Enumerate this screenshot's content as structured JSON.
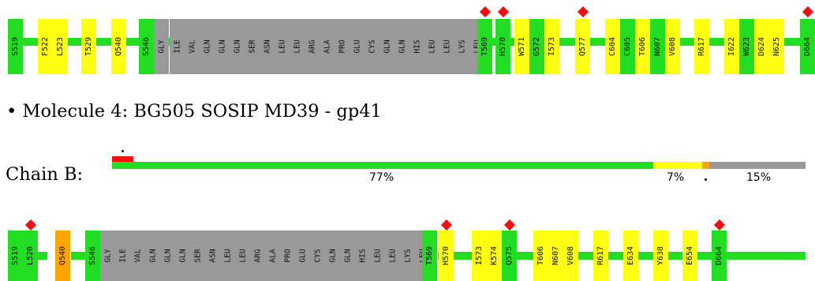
{
  "colors": {
    "green": "#22dd22",
    "yellow": "#ffff11",
    "orange": "#ffa500",
    "gray": "#999999",
    "red": "#ee1111"
  },
  "molecule_title": "• Molecule 4: BG505 SOSIP MD39 - gp41",
  "chain": {
    "label": "Chain B:",
    "quality_segments": [
      {
        "color": "green",
        "percent_label": "77%"
      },
      {
        "color": "yellow",
        "percent_label": "7%"
      },
      {
        "color": "orange",
        "percent_label": ""
      },
      {
        "color": "gray",
        "percent_label": "15%"
      }
    ]
  },
  "track_top": {
    "residues": [
      {
        "label": "S519",
        "color": "green"
      },
      {
        "label": "F522",
        "color": "yellow"
      },
      {
        "label": "L523",
        "color": "yellow"
      },
      {
        "label": "T529",
        "color": "yellow"
      },
      {
        "label": "Q540",
        "color": "yellow"
      },
      {
        "label": "S546",
        "color": "green"
      },
      {
        "label": "GLY",
        "color": "gray"
      },
      {
        "label": "ILE",
        "color": "gray"
      },
      {
        "label": "VAL",
        "color": "gray"
      },
      {
        "label": "GLN",
        "color": "gray"
      },
      {
        "label": "GLN",
        "color": "gray"
      },
      {
        "label": "GLN",
        "color": "gray"
      },
      {
        "label": "SER",
        "color": "gray"
      },
      {
        "label": "ASN",
        "color": "gray"
      },
      {
        "label": "LEU",
        "color": "gray"
      },
      {
        "label": "LEU",
        "color": "gray"
      },
      {
        "label": "ARG",
        "color": "gray"
      },
      {
        "label": "ALA",
        "color": "gray"
      },
      {
        "label": "PRO",
        "color": "gray"
      },
      {
        "label": "GLU",
        "color": "gray"
      },
      {
        "label": "CYS",
        "color": "gray"
      },
      {
        "label": "GLN",
        "color": "gray"
      },
      {
        "label": "GLN",
        "color": "gray"
      },
      {
        "label": "HIS",
        "color": "gray"
      },
      {
        "label": "LEU",
        "color": "gray"
      },
      {
        "label": "LEU",
        "color": "gray"
      },
      {
        "label": "LYS",
        "color": "gray"
      },
      {
        "label": "LEU",
        "color": "gray"
      },
      {
        "label": "T569",
        "color": "green",
        "marker": "diamond"
      },
      {
        "label": "H570",
        "color": "green",
        "marker": "diamond"
      },
      {
        "label": "W571",
        "color": "yellow"
      },
      {
        "label": "G572",
        "color": "green"
      },
      {
        "label": "I573",
        "color": "yellow"
      },
      {
        "label": "Q577",
        "color": "yellow",
        "marker": "diamond"
      },
      {
        "label": "C604",
        "color": "yellow"
      },
      {
        "label": "C605",
        "color": "green"
      },
      {
        "label": "T606",
        "color": "yellow"
      },
      {
        "label": "N607",
        "color": "green"
      },
      {
        "label": "V608",
        "color": "yellow"
      },
      {
        "label": "R617",
        "color": "yellow"
      },
      {
        "label": "I622",
        "color": "yellow"
      },
      {
        "label": "W623",
        "color": "green"
      },
      {
        "label": "D624",
        "color": "yellow"
      },
      {
        "label": "N625",
        "color": "yellow"
      },
      {
        "label": "D664",
        "color": "green",
        "marker": "diamond"
      }
    ]
  },
  "track_bottom": {
    "residues": [
      {
        "label": "S519",
        "color": "green"
      },
      {
        "label": "L520",
        "color": "green",
        "marker": "diamond"
      },
      {
        "label": "Q540",
        "color": "orange"
      },
      {
        "label": "S546",
        "color": "green"
      },
      {
        "label": "GLY",
        "color": "gray"
      },
      {
        "label": "ILE",
        "color": "gray"
      },
      {
        "label": "VAL",
        "color": "gray"
      },
      {
        "label": "GLN",
        "color": "gray"
      },
      {
        "label": "GLN",
        "color": "gray"
      },
      {
        "label": "GLN",
        "color": "gray"
      },
      {
        "label": "SER",
        "color": "gray"
      },
      {
        "label": "ASN",
        "color": "gray"
      },
      {
        "label": "LEU",
        "color": "gray"
      },
      {
        "label": "LEU",
        "color": "gray"
      },
      {
        "label": "ARG",
        "color": "gray"
      },
      {
        "label": "ALA",
        "color": "gray"
      },
      {
        "label": "PRO",
        "color": "gray"
      },
      {
        "label": "GLU",
        "color": "gray"
      },
      {
        "label": "CYS",
        "color": "gray"
      },
      {
        "label": "GLN",
        "color": "gray"
      },
      {
        "label": "GLN",
        "color": "gray"
      },
      {
        "label": "HIS",
        "color": "gray"
      },
      {
        "label": "LEU",
        "color": "gray"
      },
      {
        "label": "LEU",
        "color": "gray"
      },
      {
        "label": "LYS",
        "color": "gray"
      },
      {
        "label": "LEU",
        "color": "gray"
      },
      {
        "label": "T569",
        "color": "green"
      },
      {
        "label": "H570",
        "color": "yellow",
        "marker": "diamond"
      },
      {
        "label": "I573",
        "color": "yellow"
      },
      {
        "label": "K574",
        "color": "yellow"
      },
      {
        "label": "Q575",
        "color": "green",
        "marker": "diamond"
      },
      {
        "label": "T606",
        "color": "yellow"
      },
      {
        "label": "N607",
        "color": "yellow"
      },
      {
        "label": "V608",
        "color": "yellow"
      },
      {
        "label": "R617",
        "color": "yellow"
      },
      {
        "label": "E634",
        "color": "yellow"
      },
      {
        "label": "Y638",
        "color": "yellow"
      },
      {
        "label": "E654",
        "color": "yellow"
      },
      {
        "label": "D664",
        "color": "green",
        "marker": "diamond"
      }
    ]
  }
}
